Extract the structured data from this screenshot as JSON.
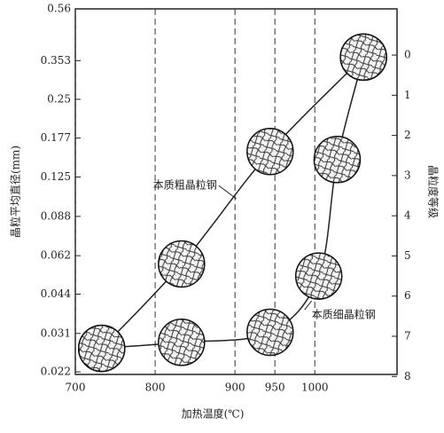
{
  "chart_data": {
    "type": "line",
    "xlabel": "加热温度(℃)",
    "ylabel": "晶粒平均直径(mm)",
    "y2label": "晶粒度等级",
    "xlim": [
      700,
      1103
    ],
    "xticks": [
      700,
      800,
      900,
      950,
      1000
    ],
    "ylim": [
      0.0215,
      0.56
    ],
    "yscale": "log",
    "yticks": [
      0.022,
      0.031,
      0.044,
      0.062,
      0.088,
      0.125,
      0.177,
      0.25,
      0.353,
      0.56
    ],
    "y2lim": [
      7.95,
      -1.15
    ],
    "y2ticks": [
      0,
      1,
      2,
      3,
      4,
      5,
      6,
      7,
      8
    ],
    "series": [
      {
        "name": "本质粗晶粒钢",
        "color": "#222222",
        "axis": "y2",
        "x": [
          733,
          833,
          944,
          1061
        ],
        "values": [
          7.3,
          5.2,
          2.4,
          0.05
        ]
      },
      {
        "name": "本质细晶粒钢",
        "color": "#222222",
        "axis": "y2",
        "x": [
          733,
          833,
          944,
          1005,
          1028,
          1061
        ],
        "values": [
          7.3,
          7.15,
          6.9,
          5.5,
          2.6,
          0.05
        ]
      }
    ]
  }
}
